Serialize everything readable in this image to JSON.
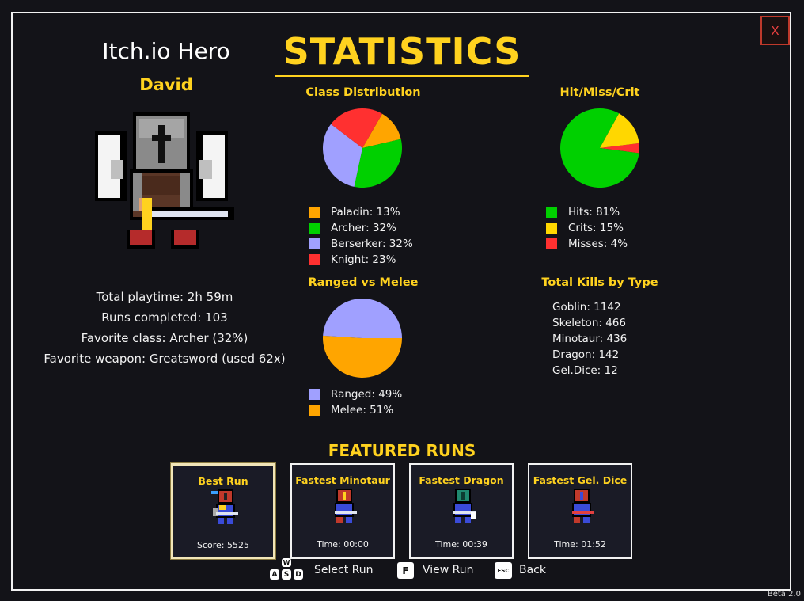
{
  "close_label": "X",
  "version": "Beta 2.0",
  "hero": {
    "title": "Itch.io Hero",
    "name": "David",
    "stats": [
      "Total playtime: 2h 59m",
      "Runs completed: 103",
      "Favorite class: Archer (32%)",
      "Favorite weapon: Greatsword (used 62x)"
    ]
  },
  "main_title": "STATISTICS",
  "class_distribution": {
    "title": "Class Distribution",
    "items": [
      {
        "label": "Paladin: 13%",
        "value": 13,
        "color": "#ffa500"
      },
      {
        "label": "Archer: 32%",
        "value": 32,
        "color": "#00d000"
      },
      {
        "label": "Berserker: 32%",
        "value": 32,
        "color": "#a0a0ff"
      },
      {
        "label": "Knight: 23%",
        "value": 23,
        "color": "#ff3030"
      }
    ]
  },
  "hit_miss_crit": {
    "title": "Hit/Miss/Crit",
    "items": [
      {
        "label": "Hits: 81%",
        "value": 81,
        "color": "#00d000"
      },
      {
        "label": "Crits: 15%",
        "value": 15,
        "color": "#ffd700"
      },
      {
        "label": "Misses: 4%",
        "value": 4,
        "color": "#ff3030"
      }
    ]
  },
  "ranged_melee": {
    "title": "Ranged vs Melee",
    "items": [
      {
        "label": "Ranged: 49%",
        "value": 49,
        "color": "#a0a0ff"
      },
      {
        "label": "Melee: 51%",
        "value": 51,
        "color": "#ffa500"
      }
    ]
  },
  "kills": {
    "title": "Total Kills by Type",
    "items": [
      "Goblin: 1142",
      "Skeleton: 466",
      "Minotaur: 436",
      "Dragon: 142",
      "Gel.Dice: 12"
    ]
  },
  "featured": {
    "title": "FEATURED RUNS",
    "runs": [
      {
        "title": "Best Run",
        "value": "Score: 5525",
        "helmet": "#c0392b"
      },
      {
        "title": "Fastest Minotaur",
        "value": "Time: 00:00",
        "helmet": "#c0392b"
      },
      {
        "title": "Fastest Dragon",
        "value": "Time: 00:39",
        "helmet": "#1f8a70"
      },
      {
        "title": "Fastest Gel. Dice",
        "value": "Time: 01:52",
        "helmet": "#c0392b"
      }
    ]
  },
  "controls": {
    "key_w": "W",
    "key_a": "A",
    "key_s": "S",
    "key_d": "D",
    "select_label": "Select Run",
    "key_f": "F",
    "view_label": "View Run",
    "key_esc": "ESC",
    "back_label": "Back"
  }
}
